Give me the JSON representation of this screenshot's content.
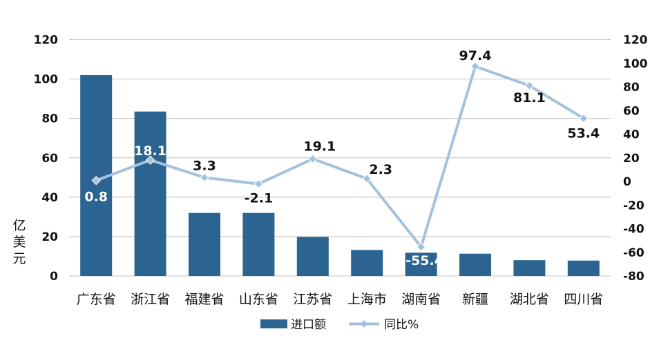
{
  "chart_data": {
    "type": "bar",
    "categories": [
      "广东省",
      "浙江省",
      "福建省",
      "山东省",
      "江苏省",
      "上海市",
      "湖南省",
      "新疆",
      "湖北省",
      "四川省"
    ],
    "series": [
      {
        "name": "进口额",
        "type": "bar",
        "axis": "left",
        "values": [
          102,
          83.5,
          32,
          32,
          19.8,
          13.2,
          11.8,
          11.3,
          8,
          7.8
        ]
      },
      {
        "name": "同比%",
        "type": "line",
        "axis": "right",
        "values": [
          0.8,
          18.1,
          3.3,
          -2.1,
          19.1,
          2.3,
          -55.4,
          97.4,
          81.1,
          53.4
        ],
        "labels": [
          "0.8",
          "18.1",
          "3.3",
          "-2.1",
          "19.1",
          "2.3",
          "-55.4",
          "97.4",
          "81.1",
          "53.4"
        ]
      }
    ],
    "ylabel": "亿美元",
    "ylim": [
      0,
      120
    ],
    "yticks": [
      0,
      20,
      40,
      60,
      80,
      100,
      120
    ],
    "y2lim": [
      -80,
      120
    ],
    "y2ticks": [
      -80,
      -60,
      -40,
      -20,
      0,
      20,
      40,
      60,
      80,
      100,
      120
    ],
    "grid": true,
    "legend_position": "bottom-center",
    "colors": {
      "bar": "#2b6391",
      "line": "#a4c2dc",
      "grid": "#bfbfbf"
    }
  }
}
